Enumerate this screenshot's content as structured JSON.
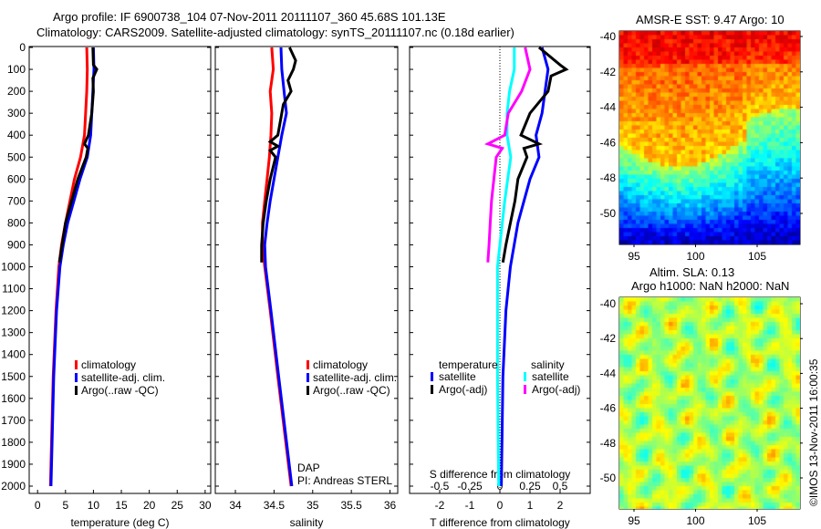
{
  "title_line1": "Argo profile: IF 6900738_104 07-Nov-2011 20111107_360 45.68S 101.13E",
  "title_line2": "Climatology: CARS2009. Satellite-adjusted climatology: synTS_20111107.nc (0.18d earlier)",
  "colors": {
    "climatology": "#ff0000",
    "satellite": "#0000ff",
    "argo": "#000000",
    "sal_satellite": "#00ffff",
    "sal_argo": "#ff00ff"
  },
  "depth_ticks": [
    0,
    100,
    200,
    300,
    400,
    500,
    600,
    700,
    800,
    900,
    1000,
    1100,
    1200,
    1300,
    1400,
    1500,
    1600,
    1700,
    1800,
    1900,
    2000
  ],
  "chart_data": [
    {
      "type": "line",
      "id": "temperature",
      "xlabel": "temperature (deg C)",
      "ylabel": "depth",
      "xlim": [
        -1.5,
        31
      ],
      "ylim": [
        2035,
        0
      ],
      "xticks": [
        0,
        5,
        10,
        15,
        20,
        25,
        30
      ],
      "legend": [
        "climatology",
        "satellite-adj. clim.",
        "Argo(..raw -QC)"
      ],
      "series": [
        {
          "name": "climatology",
          "color": "#ff0000",
          "depth": [
            0,
            100,
            200,
            400,
            500,
            600,
            700,
            800,
            900,
            1000,
            1200,
            1500,
            2000
          ],
          "values": [
            8.8,
            8.9,
            8.8,
            8.4,
            7.7,
            6.6,
            5.8,
            5.0,
            4.3,
            3.8,
            3.3,
            2.8,
            2.3
          ]
        },
        {
          "name": "satellite-adj. clim.",
          "color": "#0000ff",
          "depth": [
            0,
            100,
            200,
            400,
            500,
            600,
            700,
            800,
            900,
            1000,
            1200,
            1500,
            2000
          ],
          "values": [
            10.0,
            10.1,
            9.9,
            9.5,
            8.9,
            7.6,
            6.5,
            5.4,
            4.6,
            4.0,
            3.4,
            2.9,
            2.4
          ]
        },
        {
          "name": "Argo(..raw -QC)",
          "color": "#000000",
          "depth": [
            0,
            80,
            100,
            140,
            200,
            300,
            400,
            440,
            460,
            500,
            600,
            700,
            800,
            900,
            980
          ],
          "values": [
            9.9,
            10.0,
            10.6,
            9.9,
            10.0,
            9.7,
            9.1,
            8.4,
            9.0,
            8.7,
            7.2,
            6.1,
            5.0,
            4.4,
            3.9
          ]
        }
      ]
    },
    {
      "type": "line",
      "id": "salinity",
      "xlabel": "salinity",
      "ylabel": "depth",
      "xlim": [
        33.74,
        36.1
      ],
      "ylim": [
        2035,
        0
      ],
      "xticks": [
        "34",
        "34.5",
        "35",
        "35.5",
        "36"
      ],
      "xtick_values": [
        34,
        34.5,
        35,
        35.5,
        36
      ],
      "legend": [
        "climatology",
        "satellite-adj. clim.",
        "Argo(..raw -QC)"
      ],
      "annotations": [
        "DAP",
        "PI: Andreas STERL"
      ],
      "series": [
        {
          "name": "climatology",
          "color": "#ff0000",
          "depth": [
            0,
            100,
            200,
            300,
            400,
            500,
            600,
            700,
            800,
            900,
            1000,
            1200,
            1500,
            2000
          ],
          "values": [
            34.47,
            34.49,
            34.45,
            34.47,
            34.46,
            34.44,
            34.41,
            34.38,
            34.35,
            34.35,
            34.38,
            34.45,
            34.55,
            34.72
          ]
        },
        {
          "name": "satellite-adj. clim.",
          "color": "#0000ff",
          "depth": [
            0,
            100,
            200,
            300,
            400,
            500,
            600,
            700,
            800,
            900,
            1000,
            1200,
            1500,
            2000
          ],
          "values": [
            34.59,
            34.6,
            34.63,
            34.66,
            34.6,
            34.55,
            34.5,
            34.45,
            34.41,
            34.38,
            34.39,
            34.46,
            34.56,
            34.73
          ]
        },
        {
          "name": "Argo(..raw -QC)",
          "color": "#000000",
          "depth": [
            0,
            60,
            100,
            150,
            200,
            260,
            400,
            430,
            450,
            470,
            500,
            600,
            700,
            800,
            900,
            980
          ],
          "values": [
            34.7,
            34.78,
            34.75,
            34.68,
            34.72,
            34.62,
            34.55,
            34.45,
            34.55,
            34.45,
            34.52,
            34.45,
            34.4,
            34.36,
            34.34,
            34.34
          ]
        }
      ]
    },
    {
      "type": "line",
      "id": "difference",
      "xlabel": "T difference from climatology",
      "x2label": "S difference from climatology",
      "ylim": [
        2035,
        0
      ],
      "xlim": [
        -3,
        3
      ],
      "xticks": [
        "-2",
        "-1",
        "0",
        "1",
        "2"
      ],
      "xtick_values": [
        -2,
        -1,
        0,
        1,
        2
      ],
      "x2lim": [
        -0.75,
        0.75
      ],
      "x2ticks": [
        "-0.5",
        "-0.25",
        "0",
        "0.25",
        "0.5"
      ],
      "x2tick_values": [
        -0.5,
        -0.25,
        0,
        0.25,
        0.5
      ],
      "legend_headers": [
        "temperature",
        "salinity"
      ],
      "legend": [
        "satellite",
        "Argo(-adj)",
        "satellite",
        "Argo(-adj)"
      ],
      "series": [
        {
          "name": "T satellite",
          "axis": "T",
          "color": "#0000ff",
          "depth": [
            0,
            100,
            200,
            300,
            400,
            500,
            600,
            700,
            800,
            1000,
            1200,
            1500,
            2000
          ],
          "values": [
            1.4,
            1.6,
            1.5,
            1.4,
            1.2,
            1.3,
            1.0,
            0.8,
            0.6,
            0.35,
            0.2,
            0.1,
            0.05
          ]
        },
        {
          "name": "T Argo(-adj)",
          "axis": "T",
          "color": "#000000",
          "depth": [
            0,
            80,
            100,
            130,
            200,
            300,
            400,
            440,
            460,
            500,
            600,
            700,
            800,
            900,
            980
          ],
          "values": [
            1.3,
            2.0,
            2.2,
            1.7,
            1.6,
            1.0,
            0.7,
            1.3,
            0.8,
            0.9,
            0.6,
            0.5,
            0.35,
            0.2,
            0.1
          ]
        },
        {
          "name": "S satellite",
          "axis": "S",
          "color": "#00ffff",
          "depth": [
            0,
            100,
            200,
            300,
            400,
            500,
            700,
            900,
            1000,
            1200,
            1500,
            2000
          ],
          "values": [
            0.12,
            0.12,
            0.08,
            0.06,
            0.06,
            0.09,
            0.04,
            0.0,
            -0.02,
            -0.02,
            -0.02,
            -0.01
          ]
        },
        {
          "name": "S Argo(-adj)",
          "axis": "S",
          "color": "#ff00ff",
          "depth": [
            0,
            100,
            200,
            300,
            400,
            440,
            460,
            500,
            600,
            700,
            800,
            900,
            980
          ],
          "values": [
            0.21,
            0.25,
            0.18,
            0.07,
            0.04,
            -0.1,
            0.02,
            -0.03,
            -0.05,
            -0.07,
            -0.08,
            -0.09,
            -0.1
          ]
        }
      ]
    }
  ],
  "maps": [
    {
      "id": "sst",
      "title": "AMSR-E SST: 9.47 Argo: 10",
      "yticks": [
        "-40",
        "-42",
        "-44",
        "-46",
        "-48",
        "-50"
      ],
      "xticks": [
        "95",
        "100",
        "105"
      ]
    },
    {
      "id": "sla",
      "title": "Altim. SLA: 0.13",
      "subtitle": "Argo h1000: NaN h2000: NaN",
      "yticks": [
        "-40",
        "-42",
        "-44",
        "-46",
        "-48",
        "-50"
      ],
      "xticks": [
        "95",
        "100",
        "105"
      ]
    }
  ],
  "credit": "©IMOS 13-Nov-2011 16:00:35"
}
